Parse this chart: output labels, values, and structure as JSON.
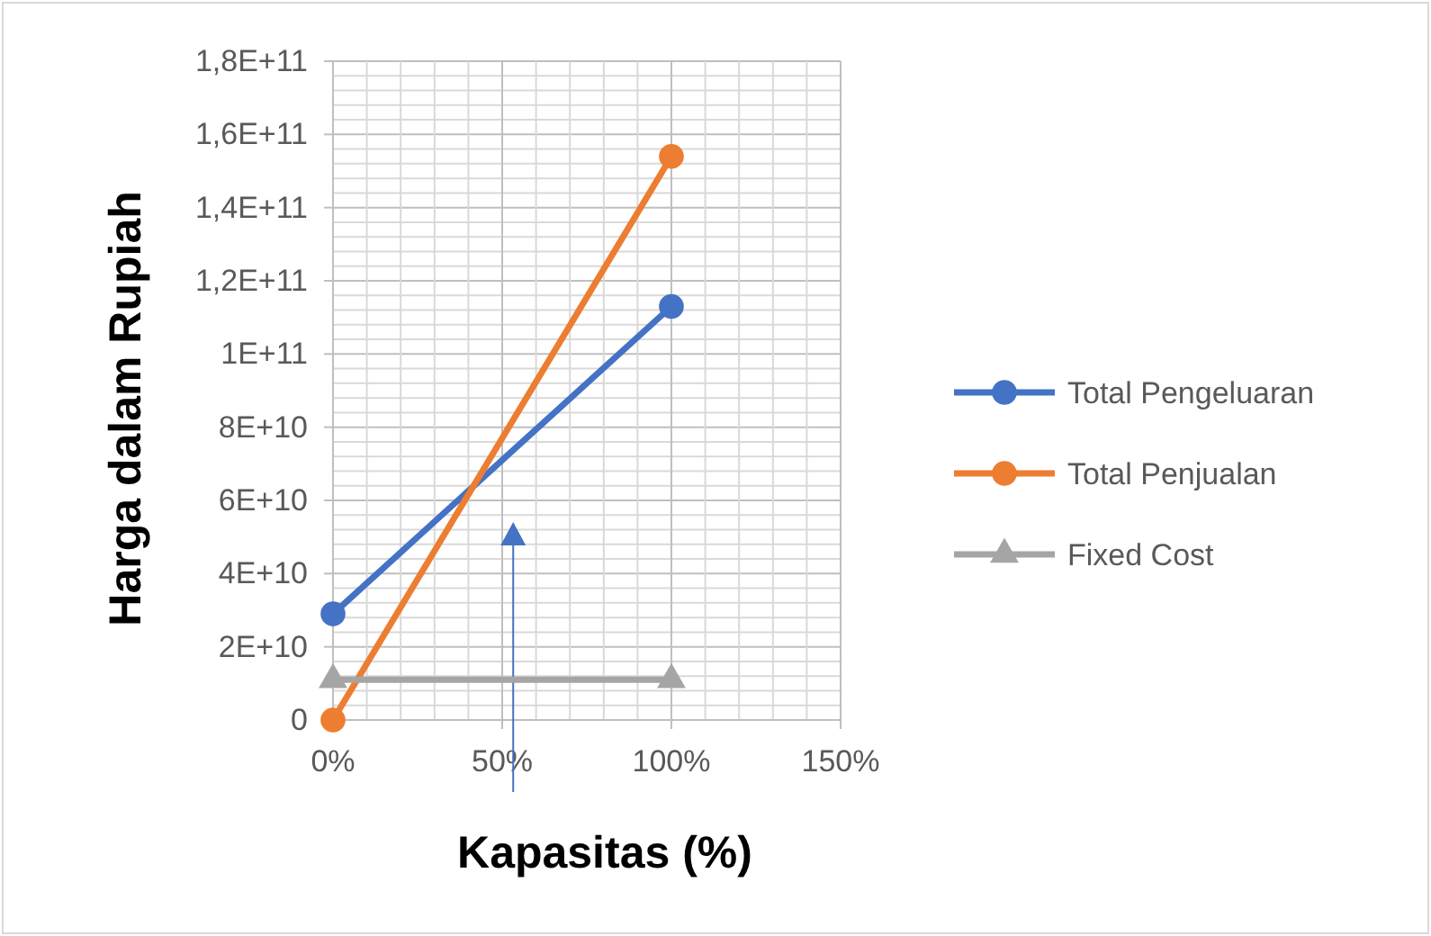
{
  "chart_data": {
    "type": "line",
    "xlabel": "Kapasitas (%)",
    "ylabel": "Harga dalam Rupiah",
    "x": [
      0,
      100
    ],
    "series": [
      {
        "name": "Total Pengeluaran",
        "color": "#4472c4",
        "values": [
          29000000000.0,
          113000000000.0
        ],
        "marker": "circle"
      },
      {
        "name": "Total Penjualan",
        "color": "#ed7d31",
        "values": [
          0,
          154000000000.0
        ],
        "marker": "circle"
      },
      {
        "name": "Fixed Cost",
        "color": "#a5a5a5",
        "values": [
          11000000000.0,
          11000000000.0
        ],
        "marker": "triangle"
      }
    ],
    "xlim": [
      0,
      150
    ],
    "xticks": [
      {
        "value": 0,
        "label": "0%"
      },
      {
        "value": 50,
        "label": "50%"
      },
      {
        "value": 100,
        "label": "100%"
      },
      {
        "value": 150,
        "label": "150%"
      }
    ],
    "ylim": [
      0,
      180000000000.0
    ],
    "yticks": [
      0,
      {
        "value": 20000000000.0,
        "label": "2E+10"
      },
      {
        "value": 40000000000.0,
        "label": "4E+10"
      },
      {
        "value": 60000000000.0,
        "label": "6E+10"
      },
      {
        "value": 80000000000.0,
        "label": "8E+10"
      },
      {
        "value": 100000000000.0,
        "label": "1E+11"
      },
      {
        "value": 120000000000.0,
        "label": "1,2E+11"
      },
      {
        "value": 140000000000.0,
        "label": "1,4E+11"
      },
      {
        "value": 160000000000.0,
        "label": "1,6E+11"
      },
      {
        "value": 180000000000.0,
        "label": "1,8E+11"
      }
    ],
    "grid": true,
    "legend": "right",
    "line_style": "solid"
  }
}
